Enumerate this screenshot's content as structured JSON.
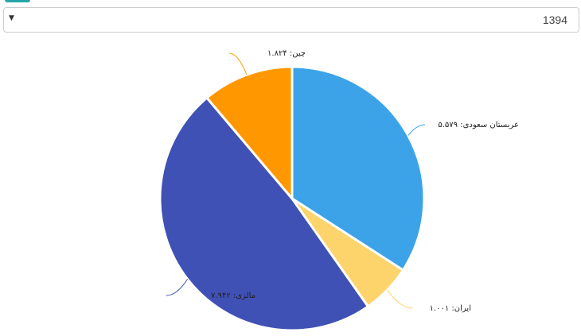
{
  "dropdown": {
    "value": "1394"
  },
  "chart_data": {
    "type": "pie",
    "categories": [
      "عربستان سعودی:",
      "ایران:",
      "مالزی:",
      "چین:"
    ],
    "values": [
      5.579,
      1.001,
      7.942,
      1.824
    ],
    "value_labels": [
      "۵.۵۷۹",
      "۱.۰۰۱",
      "۷.۹۴۲",
      "۱.۸۲۴"
    ],
    "colors": [
      "#3ca3e8",
      "#fdd36b",
      "#3f51b5",
      "#ff9800"
    ]
  }
}
